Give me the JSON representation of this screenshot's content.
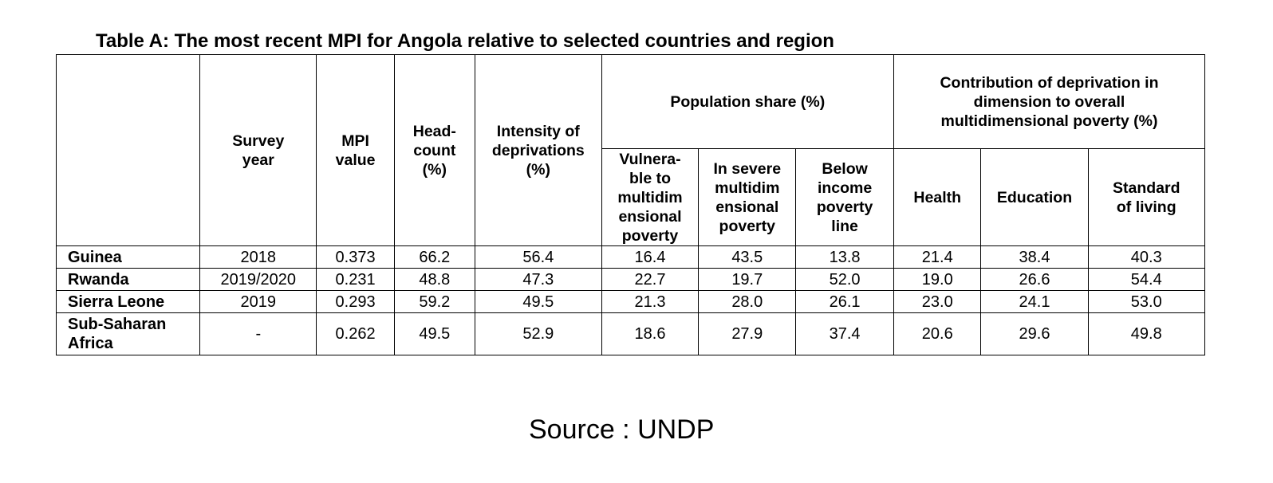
{
  "title": "Table A: The most recent MPI for Angola relative to selected countries and region",
  "headers": {
    "survey_year": "Survey year",
    "mpi_value": "MPI value",
    "headcount": "Head-count (%)",
    "intensity": "Intensity of deprivations (%)",
    "population_share": "Population share (%)",
    "vulnerable": "Vulnera-ble to multidim ensional poverty",
    "severe": "In severe multidim ensional poverty",
    "below_income": "Below income poverty line",
    "contribution": "Contribution of deprivation in dimension to overall multidimensional poverty (%)",
    "health": "Health",
    "education": "Education",
    "standard_living": "Standard of living"
  },
  "rows": [
    {
      "country": "Guinea",
      "survey_year": "2018",
      "mpi": "0.373",
      "headcount": "66.2",
      "intensity": "56.4",
      "vulnerable": "16.4",
      "severe": "43.5",
      "below_income": "13.8",
      "health": "21.4",
      "education": "38.4",
      "standard_living": "40.3"
    },
    {
      "country": "Rwanda",
      "survey_year": "2019/2020",
      "mpi": "0.231",
      "headcount": "48.8",
      "intensity": "47.3",
      "vulnerable": "22.7",
      "severe": "19.7",
      "below_income": "52.0",
      "health": "19.0",
      "education": "26.6",
      "standard_living": "54.4"
    },
    {
      "country": "Sierra Leone",
      "survey_year": "2019",
      "mpi": "0.293",
      "headcount": "59.2",
      "intensity": "49.5",
      "vulnerable": "21.3",
      "severe": "28.0",
      "below_income": "26.1",
      "health": "23.0",
      "education": "24.1",
      "standard_living": "53.0"
    },
    {
      "country": "Sub-Saharan Africa",
      "survey_year": "-",
      "mpi": "0.262",
      "headcount": "49.5",
      "intensity": "52.9",
      "vulnerable": "18.6",
      "severe": "27.9",
      "below_income": "37.4",
      "health": "20.6",
      "education": "29.6",
      "standard_living": "49.8"
    }
  ],
  "source": "Source : UNDP"
}
